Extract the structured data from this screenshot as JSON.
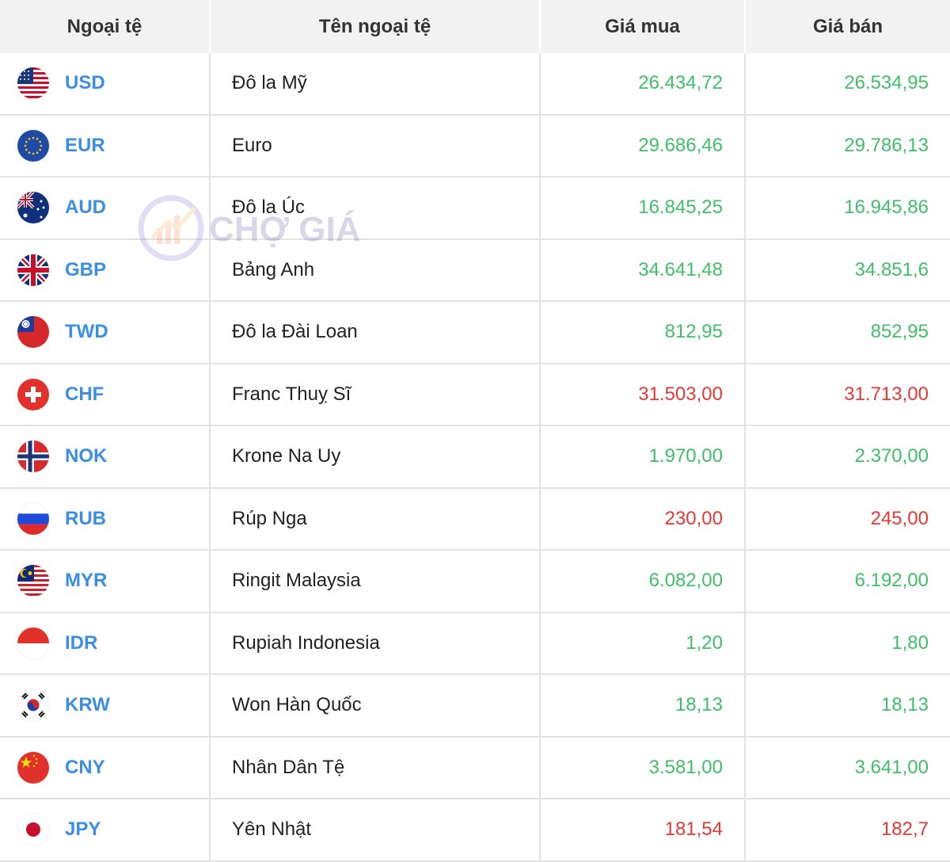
{
  "header": {
    "col_code": "Ngoại tệ",
    "col_name": "Tên ngoại tệ",
    "col_buy": "Giá mua",
    "col_sell": "Giá bán"
  },
  "watermark": {
    "text": "CHỢ GIÁ",
    "logo": "cho-gia-logo"
  },
  "colors": {
    "code": "#3a8ee6",
    "up": "#3fbf6a",
    "down": "#e53935",
    "header_bg": "#f2f2f2"
  },
  "rows": [
    {
      "code": "USD",
      "name": "Đô la Mỹ",
      "buy": "26.434,72",
      "sell": "26.534,95",
      "trend": "up",
      "flag": "us-flag"
    },
    {
      "code": "EUR",
      "name": "Euro",
      "buy": "29.686,46",
      "sell": "29.786,13",
      "trend": "up",
      "flag": "eu-flag"
    },
    {
      "code": "AUD",
      "name": "Đô la Úc",
      "buy": "16.845,25",
      "sell": "16.945,86",
      "trend": "up",
      "flag": "au-flag"
    },
    {
      "code": "GBP",
      "name": "Bảng Anh",
      "buy": "34.641,48",
      "sell": "34.851,6",
      "trend": "up",
      "flag": "gb-flag"
    },
    {
      "code": "TWD",
      "name": "Đô la Đài Loan",
      "buy": "812,95",
      "sell": "852,95",
      "trend": "up",
      "flag": "tw-flag"
    },
    {
      "code": "CHF",
      "name": "Franc Thuỵ Sĩ",
      "buy": "31.503,00",
      "sell": "31.713,00",
      "trend": "down",
      "flag": "ch-flag"
    },
    {
      "code": "NOK",
      "name": "Krone Na Uy",
      "buy": "1.970,00",
      "sell": "2.370,00",
      "trend": "up",
      "flag": "no-flag"
    },
    {
      "code": "RUB",
      "name": "Rúp Nga",
      "buy": "230,00",
      "sell": "245,00",
      "trend": "down",
      "flag": "ru-flag"
    },
    {
      "code": "MYR",
      "name": "Ringit Malaysia",
      "buy": "6.082,00",
      "sell": "6.192,00",
      "trend": "up",
      "flag": "my-flag"
    },
    {
      "code": "IDR",
      "name": "Rupiah Indonesia",
      "buy": "1,20",
      "sell": "1,80",
      "trend": "up",
      "flag": "id-flag"
    },
    {
      "code": "KRW",
      "name": "Won Hàn Quốc",
      "buy": "18,13",
      "sell": "18,13",
      "trend": "up",
      "flag": "kr-flag"
    },
    {
      "code": "CNY",
      "name": "Nhân Dân Tệ",
      "buy": "3.581,00",
      "sell": "3.641,00",
      "trend": "up",
      "flag": "cn-flag"
    },
    {
      "code": "JPY",
      "name": "Yên Nhật",
      "buy": "181,54",
      "sell": "182,7",
      "trend": "down",
      "flag": "jp-flag"
    }
  ]
}
